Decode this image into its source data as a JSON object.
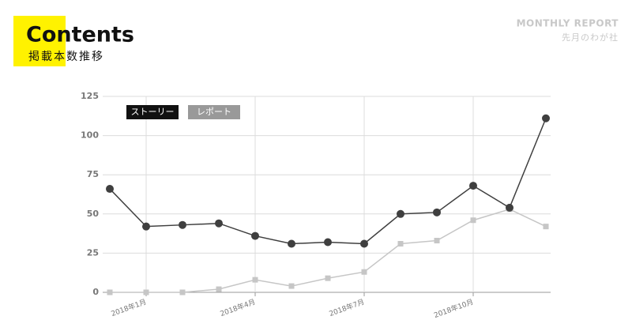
{
  "header": {
    "title": "Contents",
    "subtitle": "掲載本数推移",
    "report": "MONTHLY REPORT",
    "company": "先月のわが社"
  },
  "chart_data": {
    "type": "line",
    "categories": [
      null,
      "2018年1月",
      null,
      null,
      "2018年4月",
      null,
      null,
      "2018年7月",
      null,
      null,
      "2018年10月",
      null,
      null
    ],
    "series": [
      {
        "name": "ストーリー",
        "color": "#3f3f3f",
        "values": [
          66,
          42,
          43,
          44,
          36,
          31,
          32,
          31,
          50,
          51,
          68,
          54,
          111
        ]
      },
      {
        "name": "レポート",
        "color": "#c6c6c6",
        "values": [
          0,
          0,
          0,
          2,
          8,
          4,
          9,
          13,
          31,
          33,
          46,
          53,
          42
        ]
      }
    ],
    "ylim": [
      0,
      125
    ],
    "yticks": [
      0,
      25,
      50,
      75,
      100,
      125
    ],
    "grid": true,
    "legend": "top-left"
  }
}
